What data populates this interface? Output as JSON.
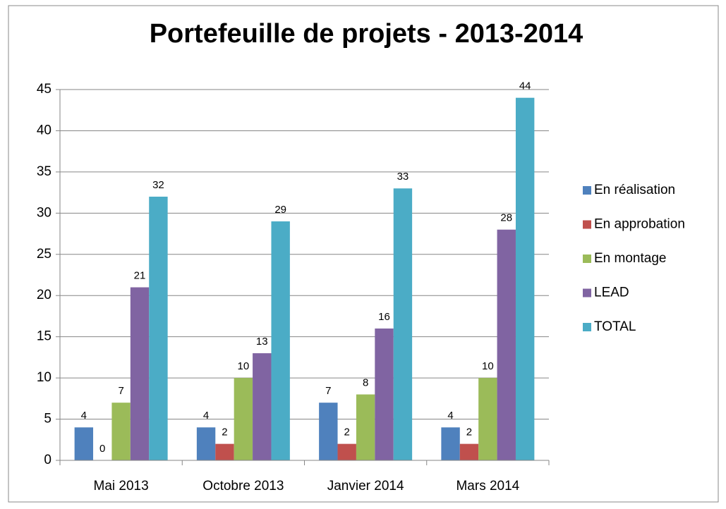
{
  "chart_data": {
    "type": "bar",
    "title": "Portefeuille de projets - 2013-2014",
    "categories": [
      "Mai 2013",
      "Octobre 2013",
      "Janvier 2014",
      "Mars 2014"
    ],
    "series": [
      {
        "name": "En réalisation",
        "color": "#4f81bd",
        "values": [
          4,
          4,
          7,
          4
        ]
      },
      {
        "name": "En approbation",
        "color": "#c0504d",
        "values": [
          0,
          2,
          2,
          2
        ]
      },
      {
        "name": "En montage",
        "color": "#9bbb59",
        "values": [
          7,
          10,
          8,
          10
        ]
      },
      {
        "name": "LEAD",
        "color": "#8064a2",
        "values": [
          21,
          13,
          16,
          28
        ]
      },
      {
        "name": "TOTAL",
        "color": "#4bacc6",
        "values": [
          32,
          29,
          33,
          44
        ]
      }
    ],
    "ylim": [
      0,
      45
    ],
    "yticks": [
      0,
      5,
      10,
      15,
      20,
      25,
      30,
      35,
      40,
      45
    ],
    "grid": true,
    "legend": "right"
  }
}
